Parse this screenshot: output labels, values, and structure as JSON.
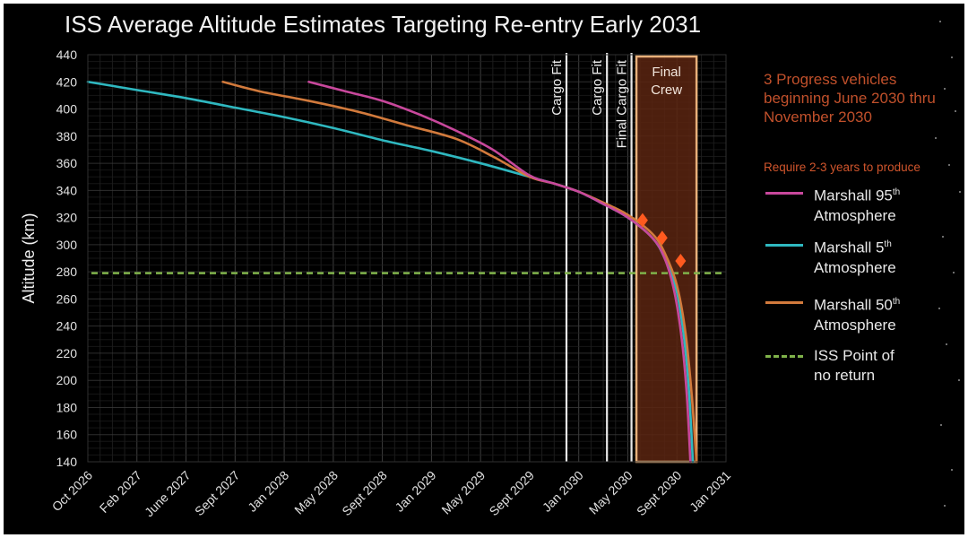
{
  "title": "ISS Average Altitude Estimates Targeting Re-entry Early 2031",
  "note": {
    "text": "3 Progress vehicles beginning June 2030 thru November 2030",
    "subtext": "Require 2-3 years to produce",
    "color": "#c0502b"
  },
  "legend": [
    {
      "name": "Marshall 95th Atmosphere",
      "label_main": "Marshall 95",
      "sup": "th",
      "label_line2": "Atmosphere",
      "color": "#c8489c",
      "style": "solid"
    },
    {
      "name": "Marshall 5th Atmosphere",
      "label_main": "Marshall 5",
      "sup": "th",
      "label_line2": "Atmosphere",
      "color": "#2fb8c0",
      "style": "solid"
    },
    {
      "name": "Marshall 50th Atmosphere",
      "label_main": "Marshall 50",
      "sup": "th",
      "label_line2": "Atmosphere",
      "color": "#d27a3c",
      "style": "solid"
    },
    {
      "name": "ISS Point of no return",
      "label_main": "ISS Point of",
      "sup": "",
      "label_line2": "no return",
      "color": "#7fb24a",
      "style": "dashed"
    }
  ],
  "chart_data": {
    "type": "line",
    "title": "ISS Average Altitude Estimates Targeting Re-entry Early 2031",
    "xlabel": "",
    "ylabel": "Altitude (km)",
    "ylim": [
      140,
      440
    ],
    "yticks": [
      140,
      160,
      180,
      200,
      220,
      240,
      260,
      280,
      300,
      320,
      340,
      360,
      380,
      400,
      420,
      440
    ],
    "xticks": [
      "Oct 2026",
      "Feb 2027",
      "June 2027",
      "Sept 2027",
      "Jan 2028",
      "May 2028",
      "Sept 2028",
      "Jan 2029",
      "May 2029",
      "Sept 2029",
      "Jan 2030",
      "May 2030",
      "Sept 2030",
      "Jan 2031"
    ],
    "x_unit": "months since Oct 2026",
    "grid": true,
    "legend_position": "right",
    "series": [
      {
        "name": "Marshall 5th Atmosphere",
        "color": "#2fb8c0",
        "x": [
          0,
          4,
          8,
          12,
          16,
          20,
          24,
          28,
          32,
          36,
          38,
          40,
          42,
          44,
          46,
          47,
          48,
          48.6,
          49,
          49.3
        ],
        "y": [
          420,
          414,
          408,
          401,
          394,
          386,
          377,
          369,
          360,
          350,
          345,
          339,
          330,
          320,
          305,
          290,
          265,
          230,
          190,
          140
        ]
      },
      {
        "name": "Marshall 50th Atmosphere",
        "color": "#d27a3c",
        "x": [
          11,
          14,
          18,
          22,
          26,
          30,
          33,
          36,
          38,
          40,
          42,
          44,
          46,
          47,
          48,
          48.7,
          49.2,
          49.6
        ],
        "y": [
          420,
          413,
          406,
          398,
          388,
          378,
          365,
          350,
          345,
          339,
          331,
          322,
          308,
          294,
          270,
          235,
          190,
          140
        ]
      },
      {
        "name": "Marshall 95th Atmosphere",
        "color": "#c8489c",
        "x": [
          18,
          21,
          24,
          27,
          30,
          33,
          36,
          38,
          40,
          42,
          44,
          46,
          47,
          47.8,
          48.4,
          48.8,
          49.1
        ],
        "y": [
          420,
          413,
          406,
          396,
          384,
          370,
          351,
          345,
          339,
          330,
          320,
          305,
          290,
          265,
          230,
          190,
          140
        ]
      }
    ],
    "reference_lines": [
      {
        "name": "ISS Point of no return",
        "type": "horizontal",
        "y": 279,
        "color": "#7fb24a",
        "style": "dashed"
      }
    ],
    "annotations": [
      {
        "type": "vline",
        "label": "Cargo Fit",
        "x": 39.0
      },
      {
        "type": "vline",
        "label": "Cargo Fit",
        "x": 42.3
      },
      {
        "type": "vline",
        "label": "Final Cargo Fit",
        "x": 44.3
      },
      {
        "type": "shaded-region",
        "label": "Final Crew",
        "x_start": 44.7,
        "x_end": 49.6,
        "fill": "#5a2410",
        "border": "#e8b07a"
      },
      {
        "type": "markers",
        "label": "Progress vehicles",
        "shape": "diamond",
        "color": "#ff5a1f",
        "points": [
          {
            "x": 45.2,
            "y": 318
          },
          {
            "x": 46.8,
            "y": 305
          },
          {
            "x": 48.3,
            "y": 288
          }
        ]
      }
    ]
  }
}
